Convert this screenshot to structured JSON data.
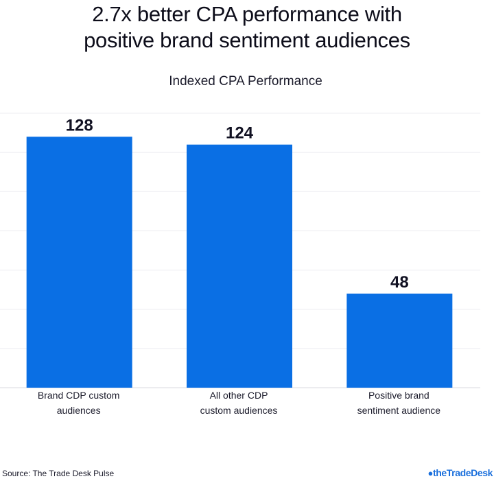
{
  "title_line1": "2.7x better CPA performance with",
  "title_line2": "positive brand sentiment audiences",
  "source": "Source: The Trade Desk Pulse",
  "brand": {
    "name": "theTradeDesk",
    "icon": "tradedesk-logo-icon",
    "color": "#1a6fdc"
  },
  "chart_data": {
    "type": "bar",
    "title": "Indexed CPA Performance",
    "categories": [
      [
        "Brand CDP custom",
        "audiences"
      ],
      [
        "All other CDP",
        "custom audiences"
      ],
      [
        "Positive brand",
        "sentiment audience"
      ]
    ],
    "values": [
      128,
      124,
      48
    ],
    "data_labels": [
      "128",
      "124",
      "48"
    ],
    "ylim": [
      0,
      140
    ],
    "grid": true,
    "bar_color": "#0a6fe4",
    "xlabel": "",
    "ylabel": ""
  }
}
